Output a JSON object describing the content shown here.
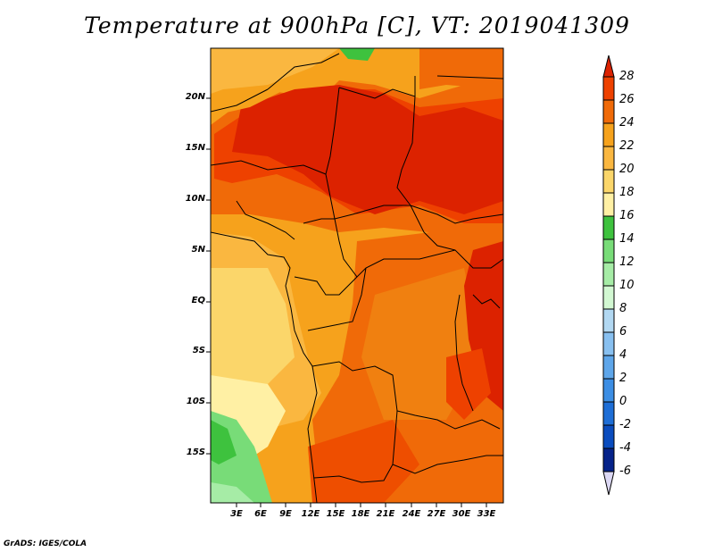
{
  "title": "Temperature at 900hPa [C], VT: 2019041309",
  "credit": "GrADS: IGES/COLA",
  "map": {
    "lat_labels": [
      "20N",
      "15N",
      "10N",
      "5N",
      "EQ",
      "5S",
      "10S",
      "15S"
    ],
    "lon_labels": [
      "3E",
      "6E",
      "9E",
      "12E",
      "15E",
      "18E",
      "21E",
      "24E",
      "27E",
      "30E",
      "33E"
    ]
  },
  "colorbar": {
    "levels": [
      "28",
      "26",
      "24",
      "22",
      "20",
      "18",
      "16",
      "14",
      "12",
      "10",
      "8",
      "6",
      "4",
      "2",
      "0",
      "-2",
      "-4",
      "-6"
    ],
    "colors": [
      "#dc2200",
      "#ee4100",
      "#f06a08",
      "#f6a21c",
      "#fab740",
      "#fbd66a",
      "#fff0a4",
      "#3ec23e",
      "#78dc78",
      "#a6eca6",
      "#d2f8d2",
      "#b2d8f2",
      "#88c0f0",
      "#5ea6ea",
      "#3c8ee4",
      "#1e6ed6",
      "#0a4cbe",
      "#06238a",
      "#08105e",
      "#dcd8f4"
    ]
  }
}
